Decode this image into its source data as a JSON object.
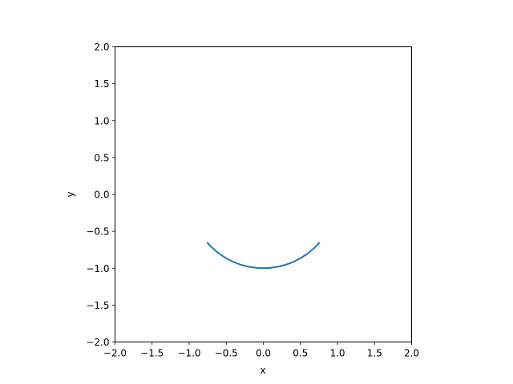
{
  "chart_data": {
    "type": "line",
    "title": "",
    "xlabel": "x",
    "ylabel": "y",
    "xlim": [
      -2.0,
      2.0
    ],
    "ylim": [
      -2.0,
      2.0
    ],
    "xticks": [
      "−2.0",
      "−1.5",
      "−1.0",
      "−0.5",
      "0.0",
      "0.5",
      "1.0",
      "1.5",
      "2.0"
    ],
    "yticks": [
      "−2.0",
      "−1.5",
      "−1.0",
      "−0.5",
      "0.0",
      "0.5",
      "1.0",
      "1.5",
      "2.0"
    ],
    "grid": false,
    "legend": "none",
    "series": [
      {
        "color": "#1f77b4",
        "x": [
          -0.76,
          -0.7,
          -0.6,
          -0.5,
          -0.4,
          -0.3,
          -0.2,
          -0.1,
          0.0,
          0.1,
          0.2,
          0.3,
          0.4,
          0.5,
          0.6,
          0.7,
          0.76
        ],
        "y": [
          -0.65,
          -0.714,
          -0.8,
          -0.866,
          -0.917,
          -0.954,
          -0.98,
          -0.995,
          -1.0,
          -0.995,
          -0.98,
          -0.954,
          -0.917,
          -0.866,
          -0.8,
          -0.714,
          -0.65
        ]
      }
    ]
  }
}
